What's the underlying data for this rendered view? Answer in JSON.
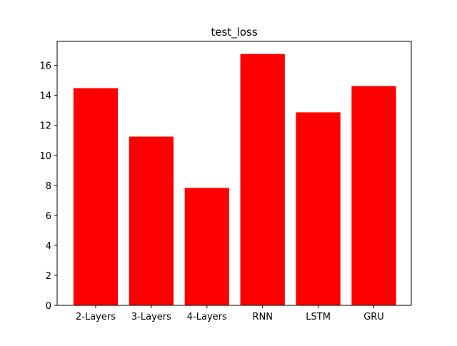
{
  "chart_data": {
    "type": "bar",
    "title": "test_loss",
    "xlabel": "",
    "ylabel": "",
    "categories": [
      "2-Layers",
      "3-Layers",
      "4-Layers",
      "RNN",
      "LSTM",
      "GRU"
    ],
    "values": [
      14.48,
      11.25,
      7.83,
      16.76,
      12.87,
      14.62
    ],
    "ylim": [
      0,
      17.6
    ],
    "yticks": [
      0,
      2,
      4,
      6,
      8,
      10,
      12,
      14,
      16
    ],
    "bar_color": "#ff0000",
    "grid": false,
    "legend": "none"
  }
}
